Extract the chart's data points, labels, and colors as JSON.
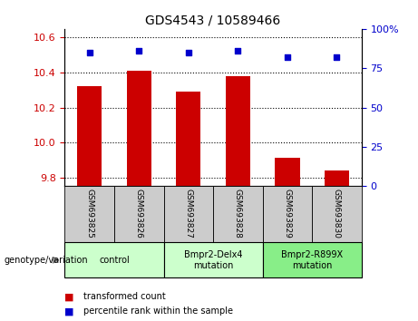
{
  "title": "GDS4543 / 10589466",
  "samples": [
    "GSM693825",
    "GSM693826",
    "GSM693827",
    "GSM693828",
    "GSM693829",
    "GSM693830"
  ],
  "bar_values": [
    10.32,
    10.41,
    10.29,
    10.38,
    9.91,
    9.84
  ],
  "scatter_values": [
    85,
    86,
    85,
    86,
    82,
    82
  ],
  "ylim_left": [
    9.75,
    10.65
  ],
  "ylim_right": [
    0,
    100
  ],
  "yticks_left": [
    9.8,
    10.0,
    10.2,
    10.4,
    10.6
  ],
  "yticks_right": [
    0,
    25,
    50,
    75,
    100
  ],
  "ytick_labels_right": [
    "0",
    "25",
    "50",
    "75",
    "100%"
  ],
  "bar_color": "#cc0000",
  "scatter_color": "#0000cc",
  "bar_bottom": 9.75,
  "genotype_groups": [
    {
      "label": "control",
      "color": "#ccffcc",
      "start": 0,
      "end": 2
    },
    {
      "label": "Bmpr2-Delx4\nmutation",
      "color": "#ccffcc",
      "start": 2,
      "end": 4
    },
    {
      "label": "Bmpr2-R899X\nmutation",
      "color": "#88ee88",
      "start": 4,
      "end": 6
    }
  ],
  "legend_items": [
    {
      "label": "transformed count",
      "color": "#cc0000"
    },
    {
      "label": "percentile rank within the sample",
      "color": "#0000cc"
    }
  ],
  "genotype_label": "genotype/variation",
  "tick_color_left": "#cc0000",
  "tick_color_right": "#0000cc",
  "background_color": "#ffffff",
  "sample_bg_color": "#cccccc",
  "bar_width": 0.5
}
